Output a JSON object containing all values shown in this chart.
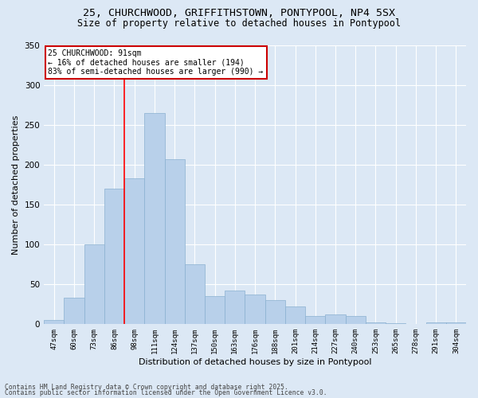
{
  "title_line1": "25, CHURCHWOOD, GRIFFITHSTOWN, PONTYPOOL, NP4 5SX",
  "title_line2": "Size of property relative to detached houses in Pontypool",
  "xlabel": "Distribution of detached houses by size in Pontypool",
  "ylabel": "Number of detached properties",
  "categories": [
    "47sqm",
    "60sqm",
    "73sqm",
    "86sqm",
    "98sqm",
    "111sqm",
    "124sqm",
    "137sqm",
    "150sqm",
    "163sqm",
    "176sqm",
    "188sqm",
    "201sqm",
    "214sqm",
    "227sqm",
    "240sqm",
    "253sqm",
    "265sqm",
    "278sqm",
    "291sqm",
    "304sqm"
  ],
  "values": [
    5,
    33,
    100,
    170,
    183,
    265,
    207,
    75,
    35,
    42,
    37,
    30,
    22,
    10,
    12,
    10,
    2,
    1,
    0,
    2,
    2
  ],
  "bar_color": "#b8d0ea",
  "bar_edge_color": "#8ab0d0",
  "background_color": "#dce8f5",
  "grid_color": "#ffffff",
  "red_line_x": 3.5,
  "annotation_text": "25 CHURCHWOOD: 91sqm\n← 16% of detached houses are smaller (194)\n83% of semi-detached houses are larger (990) →",
  "annotation_box_color": "#ffffff",
  "annotation_box_edge": "#cc0000",
  "footer_line1": "Contains HM Land Registry data © Crown copyright and database right 2025.",
  "footer_line2": "Contains public sector information licensed under the Open Government Licence v3.0.",
  "ylim": [
    0,
    350
  ],
  "yticks": [
    0,
    50,
    100,
    150,
    200,
    250,
    300,
    350
  ]
}
